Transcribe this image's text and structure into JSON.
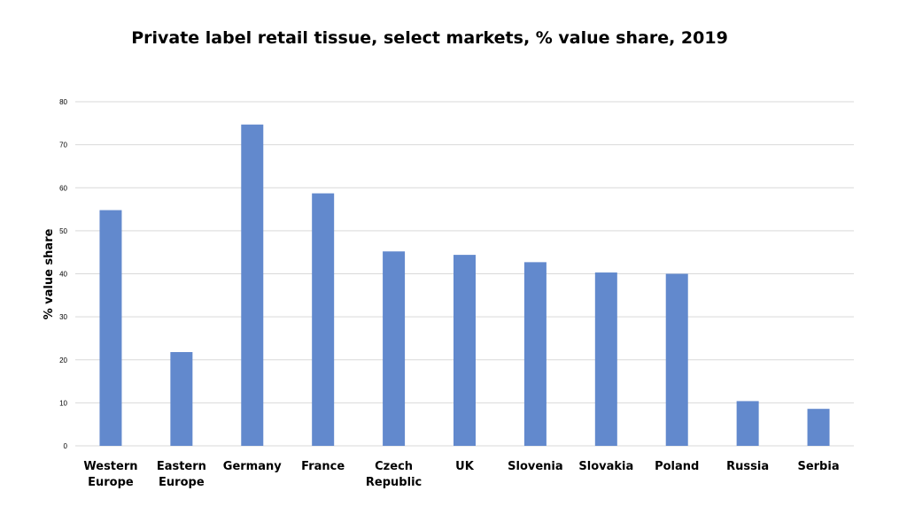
{
  "chart_data": {
    "type": "bar",
    "title": "Private label retail tissue, select markets, % value share, 2019",
    "xlabel": "",
    "ylabel": "% value share",
    "ylim": [
      0,
      80
    ],
    "yticks": [
      0,
      10,
      20,
      30,
      40,
      50,
      60,
      70,
      80
    ],
    "grid": true,
    "legend": "none",
    "bar_color": "#6289cd",
    "categories": [
      [
        "Western",
        "Europe"
      ],
      [
        "Eastern",
        "Europe"
      ],
      [
        "Germany"
      ],
      [
        "France"
      ],
      [
        "Czech",
        "Republic"
      ],
      [
        "UK"
      ],
      [
        "Slovenia"
      ],
      [
        "Slovakia"
      ],
      [
        "Poland"
      ],
      [
        "Russia"
      ],
      [
        "Serbia"
      ]
    ],
    "values": [
      54.8,
      21.8,
      74.7,
      58.7,
      45.2,
      44.4,
      42.7,
      40.3,
      40.0,
      10.4,
      8.6
    ]
  }
}
